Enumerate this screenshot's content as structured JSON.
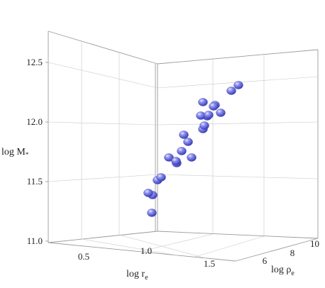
{
  "chart_data": {
    "type": "scatter",
    "title": "",
    "zlabel": {
      "main": "log M",
      "sub": "*"
    },
    "xlabel": {
      "main": "log r",
      "sub": "e"
    },
    "ylabel": {
      "main": "log ρ",
      "sub": "e"
    },
    "zlim": [
      11.0,
      12.75
    ],
    "ztick_labels": [
      "11.0",
      "11.5",
      "12.0",
      "12.5"
    ],
    "xtick_labels": [
      "0.5",
      "1.0",
      "1.5"
    ],
    "ytick_labels": [
      "6",
      "8",
      "10"
    ],
    "grid": true,
    "marker_color": "#6b6fe0",
    "points_logM": [
      11.22,
      11.36,
      11.38,
      11.5,
      11.53,
      11.62,
      11.65,
      11.69,
      11.7,
      11.74,
      11.78,
      11.83,
      11.89,
      11.93,
      11.97,
      12.04,
      12.05,
      12.07,
      12.12,
      12.14,
      12.16,
      12.25,
      12.29
    ]
  }
}
